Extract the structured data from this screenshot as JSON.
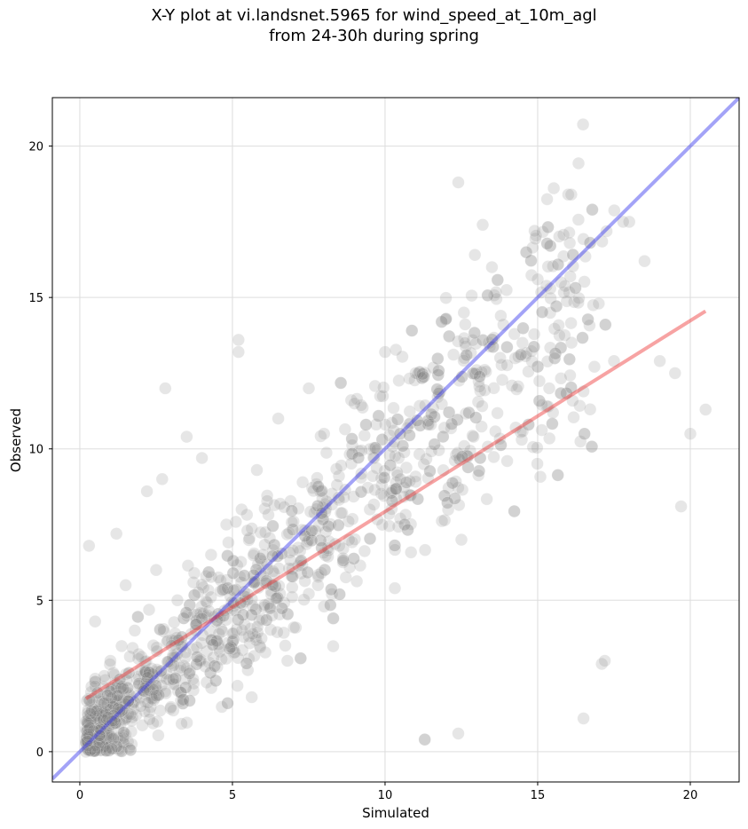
{
  "chart_data": {
    "type": "scatter",
    "title_line1": "X-Y plot at vi.landsnet.5965 for wind_speed_at_10m_agl",
    "title_line2": "from 24-30h during spring",
    "xlabel": "Simulated",
    "ylabel": "Observed",
    "xlim": [
      -0.9,
      21.6
    ],
    "ylim": [
      -1.0,
      21.6
    ],
    "xticks": [
      0,
      5,
      10,
      15,
      20
    ],
    "yticks": [
      0,
      5,
      10,
      15,
      20
    ],
    "grid": true,
    "point_color": "#808080",
    "point_opacity": 0.2,
    "one_to_one_line": {
      "color": "#3333ee",
      "x": [
        -0.9,
        21.6
      ],
      "y": [
        -0.9,
        21.6
      ]
    },
    "fit_line": {
      "color": "#ee3333",
      "x": [
        0.2,
        20.5
      ],
      "y": [
        1.75,
        14.55
      ]
    },
    "sample_points": {
      "x": [
        0.3,
        0.5,
        0.8,
        1.0,
        1.2,
        1.5,
        1.8,
        2.0,
        2.2,
        2.5,
        2.7,
        3.0,
        3.2,
        3.5,
        3.8,
        4.0,
        4.3,
        4.5,
        4.8,
        5.0,
        5.3,
        5.5,
        5.8,
        6.0,
        6.3,
        6.5,
        6.8,
        7.0,
        7.3,
        7.5,
        7.8,
        8.0,
        8.5,
        9.0,
        9.5,
        10.0,
        10.5,
        11.0,
        11.5,
        12.0,
        12.5,
        13.0,
        13.5,
        14.0,
        14.5,
        15.0,
        15.5,
        16.0,
        16.5,
        17.0,
        17.5,
        18.0,
        18.5,
        19.0,
        19.5,
        20.0,
        20.5,
        12.4,
        16.1,
        13.2,
        14.9,
        17.8,
        0.3,
        0.2,
        2.8,
        5.2,
        5.2,
        11.3,
        12.4,
        16.5,
        17.1,
        19.7,
        17.2,
        11.3
      ],
      "y": [
        6.8,
        4.3,
        2.5,
        3.0,
        7.2,
        5.5,
        4.0,
        1.5,
        8.6,
        6.0,
        9.0,
        3.5,
        5.0,
        10.4,
        4.2,
        9.7,
        6.5,
        2.8,
        7.5,
        3.9,
        8.0,
        5.2,
        9.3,
        6.5,
        4.5,
        11.0,
        3.0,
        7.6,
        8.9,
        12.0,
        5.5,
        10.5,
        6.8,
        11.5,
        8.0,
        13.2,
        9.0,
        12.5,
        10.8,
        14.3,
        7.0,
        12.6,
        16.0,
        9.6,
        13.5,
        15.6,
        11.2,
        18.4,
        11.9,
        14.8,
        12.9,
        17.5,
        16.2,
        12.9,
        12.5,
        10.5,
        11.3,
        18.8,
        18.4,
        17.4,
        17.2,
        17.5,
        0.5,
        0.0,
        12.0,
        13.6,
        13.2,
        0.4,
        0.6,
        1.1,
        2.9,
        8.1,
        3.0,
        0.4
      ]
    }
  }
}
